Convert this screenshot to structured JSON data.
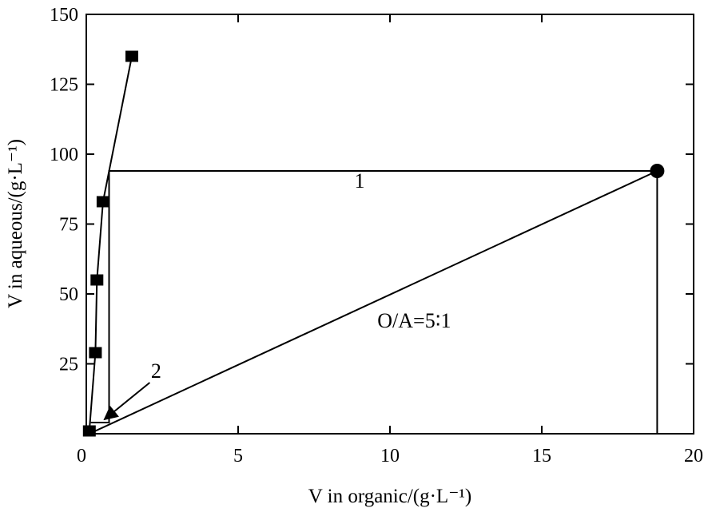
{
  "chart_data": {
    "type": "scatter",
    "xlabel": "V in organic/(g·L⁻¹)",
    "ylabel": "V in aqueous/(g·L⁻¹)",
    "xlim": [
      0,
      20
    ],
    "ylim": [
      0,
      150
    ],
    "x_ticks": [
      0,
      5,
      10,
      15,
      20
    ],
    "y_ticks": [
      0,
      25,
      50,
      75,
      100,
      125,
      150
    ],
    "x_tick_labels": [
      "0",
      "5",
      "10",
      "15",
      "20"
    ],
    "y_tick_labels": [
      "0",
      "25",
      "50",
      "75",
      "100",
      "125",
      "150"
    ],
    "grid": false,
    "series": [
      {
        "marker": "square",
        "line": true,
        "points": [
          {
            "x": 0.1,
            "y": 1
          },
          {
            "x": 0.3,
            "y": 29
          },
          {
            "x": 0.35,
            "y": 55
          },
          {
            "x": 0.55,
            "y": 83
          },
          {
            "x": 1.5,
            "y": 135
          }
        ]
      },
      {
        "marker": "circle",
        "points": [
          {
            "x": 18.8,
            "y": 94
          }
        ]
      }
    ],
    "operating_line": {
      "from": {
        "x": 0.1,
        "y": 0
      },
      "to": {
        "x": 18.8,
        "y": 94
      }
    },
    "stages": [
      [
        [
          18.8,
          94
        ],
        [
          0.75,
          94
        ],
        [
          0.75,
          4
        ],
        [
          0.15,
          4
        ]
      ]
    ],
    "drop_line": {
      "x": 18.8,
      "from_y": 0,
      "to_y": 94
    },
    "annotations": [
      {
        "text": "1",
        "x": 9,
        "y": 88
      },
      {
        "text": "O/A=5∶1",
        "x": 10.8,
        "y": 38
      },
      {
        "text": "2",
        "x": 2.3,
        "y": 20,
        "arrow_to": {
          "x": 0.6,
          "y": 4
        }
      }
    ]
  }
}
